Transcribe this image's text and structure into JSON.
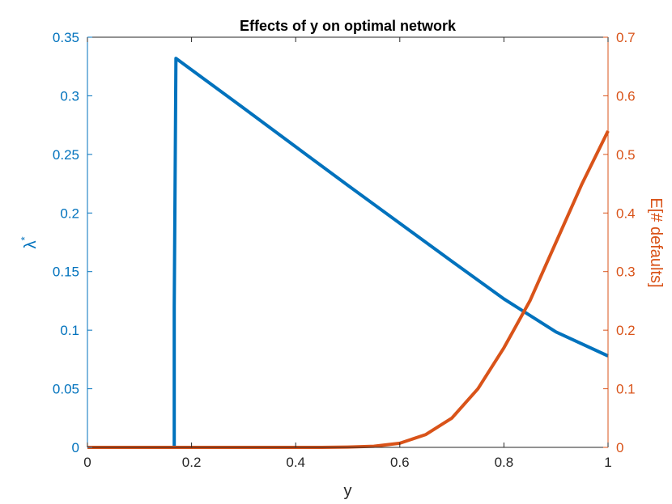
{
  "chart_data": {
    "type": "line",
    "title": "Effects of y on optimal network",
    "xlabel": "y",
    "ylabel_left": "λ",
    "ylabel_left_superscript": "*",
    "ylabel_right": "E[# defaults]",
    "xlim": [
      0,
      1
    ],
    "ylim_left": [
      0,
      0.35
    ],
    "ylim_right": [
      0,
      0.7
    ],
    "xticks": [
      "0",
      "0.2",
      "0.4",
      "0.6",
      "0.8",
      "1"
    ],
    "yticks_left": [
      "0",
      "0.05",
      "0.1",
      "0.15",
      "0.2",
      "0.25",
      "0.3",
      "0.35"
    ],
    "yticks_right": [
      "0",
      "0.1",
      "0.2",
      "0.3",
      "0.4",
      "0.5",
      "0.6",
      "0.7"
    ],
    "grid": false,
    "colors": {
      "left": "#0072BD",
      "right": "#D95319",
      "axis": "#262626"
    },
    "series": [
      {
        "axis": "left",
        "x": [
          0,
          0.1667,
          0.1667,
          0.17,
          0.3,
          0.4,
          0.5,
          0.6,
          0.7,
          0.8,
          0.9,
          1.0
        ],
        "y": [
          0,
          0,
          0.12,
          0.332,
          0.2895,
          0.2565,
          0.2237,
          0.1912,
          0.1588,
          0.1267,
          0.0985,
          0.078
        ]
      },
      {
        "axis": "right",
        "x": [
          0,
          0.45,
          0.5,
          0.55,
          0.6,
          0.65,
          0.7,
          0.75,
          0.8,
          0.85,
          0.9,
          0.95,
          1.0
        ],
        "y": [
          0,
          0,
          0.0005,
          0.002,
          0.007,
          0.022,
          0.05,
          0.1,
          0.17,
          0.25,
          0.35,
          0.45,
          0.54
        ]
      }
    ]
  }
}
